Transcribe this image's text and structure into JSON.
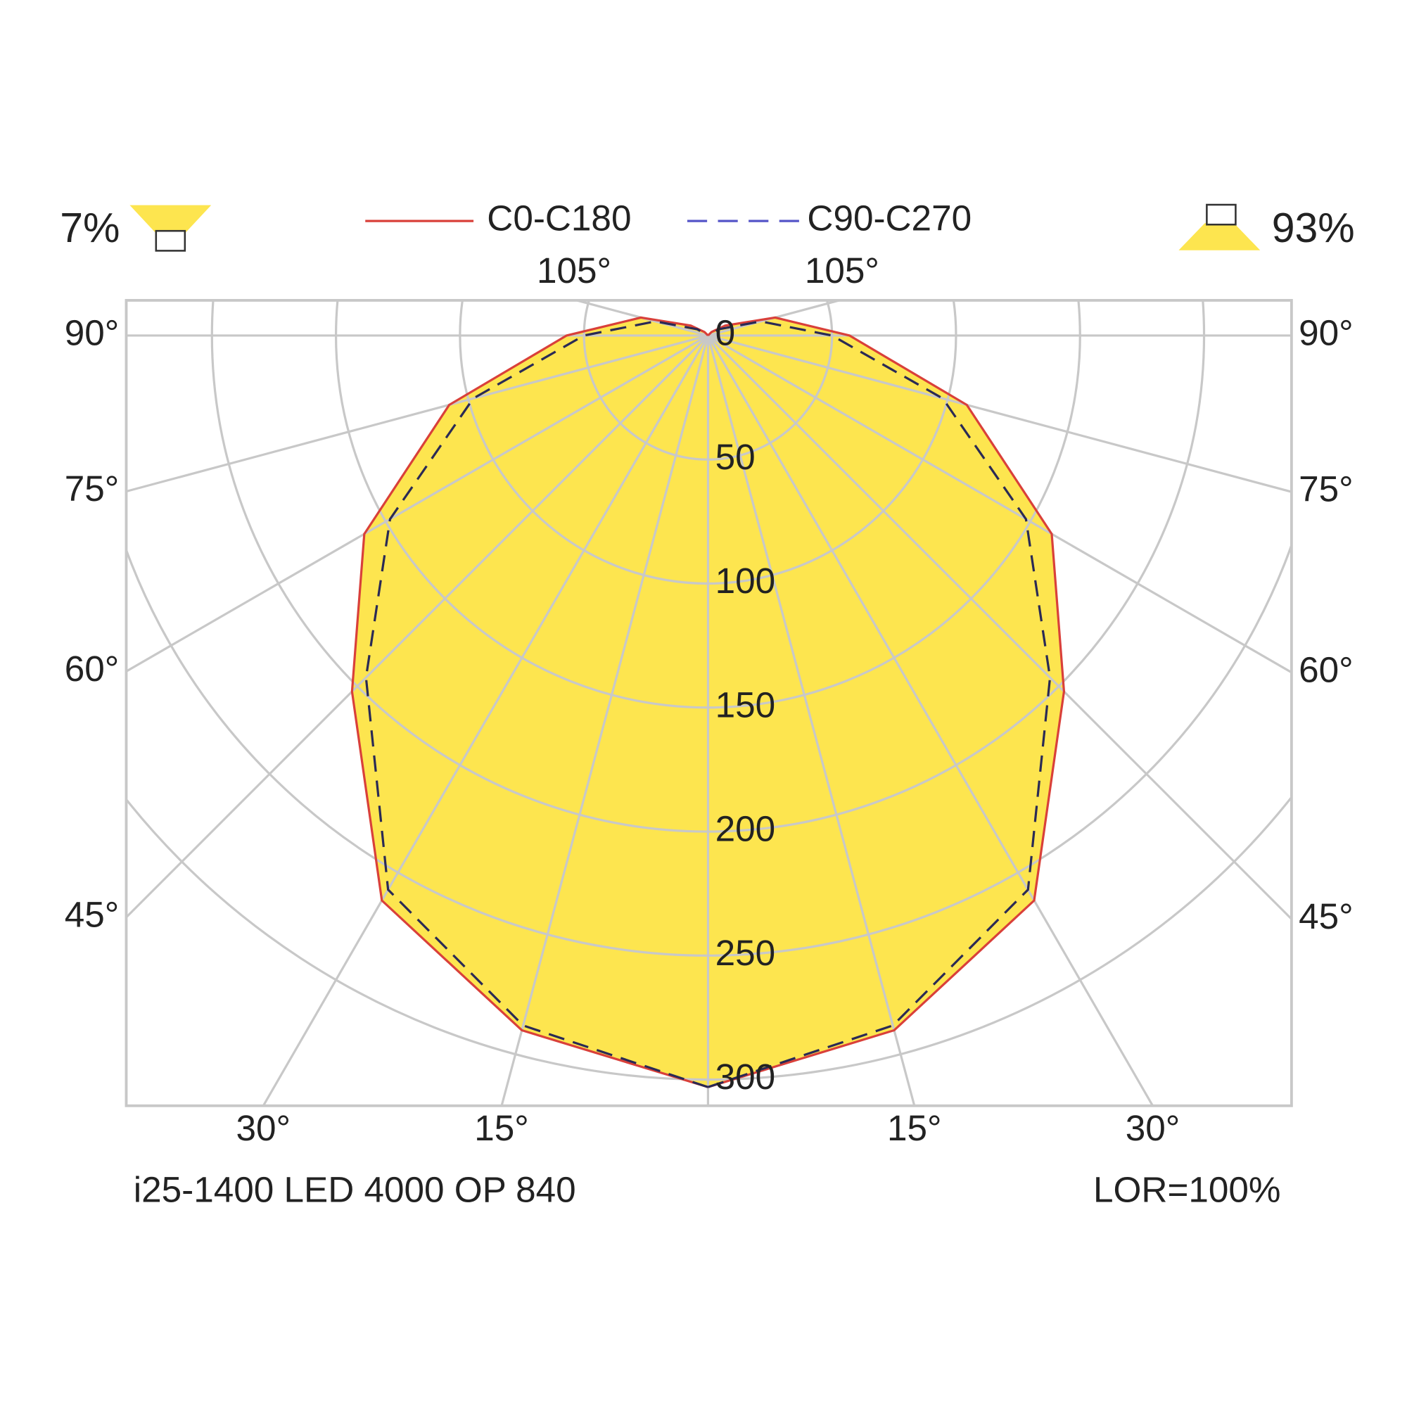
{
  "chart_data": {
    "type": "polar",
    "uplight_label": "7%",
    "downlight_label": "93%",
    "luminaire": "i25-1400 LED 4000 OP 840",
    "lor": "LOR=100%",
    "x": [
      0,
      15,
      30,
      45,
      60,
      75,
      90,
      105,
      120,
      135,
      150,
      165,
      180
    ],
    "series": [
      {
        "name": "C0-C180",
        "color": "#d9403a",
        "linestyle": "solid",
        "fill": "#fde54f",
        "values": [
          303,
          290,
          263,
          203,
          160,
          108,
          57,
          28,
          8,
          2,
          0,
          0,
          0
        ]
      },
      {
        "name": "C90-C270",
        "color": "#2a2a55",
        "legend_color": "#5555c8",
        "linestyle": "dashed",
        "values": [
          303,
          288,
          258,
          195,
          148,
          98,
          50,
          22,
          5,
          0,
          0,
          0,
          0
        ]
      }
    ],
    "rlim": [
      0,
      300
    ],
    "rticks": [
      0,
      50,
      100,
      150,
      200,
      250,
      300
    ],
    "angle_ticks": [
      {
        "value": 15,
        "label": "15°"
      },
      {
        "value": 30,
        "label": "30°"
      },
      {
        "value": 45,
        "label": "45°"
      },
      {
        "value": 60,
        "label": "60°"
      },
      {
        "value": 75,
        "label": "75°"
      },
      {
        "value": 90,
        "label": "90°"
      },
      {
        "value": 105,
        "label": "105°"
      }
    ],
    "grid": true
  }
}
